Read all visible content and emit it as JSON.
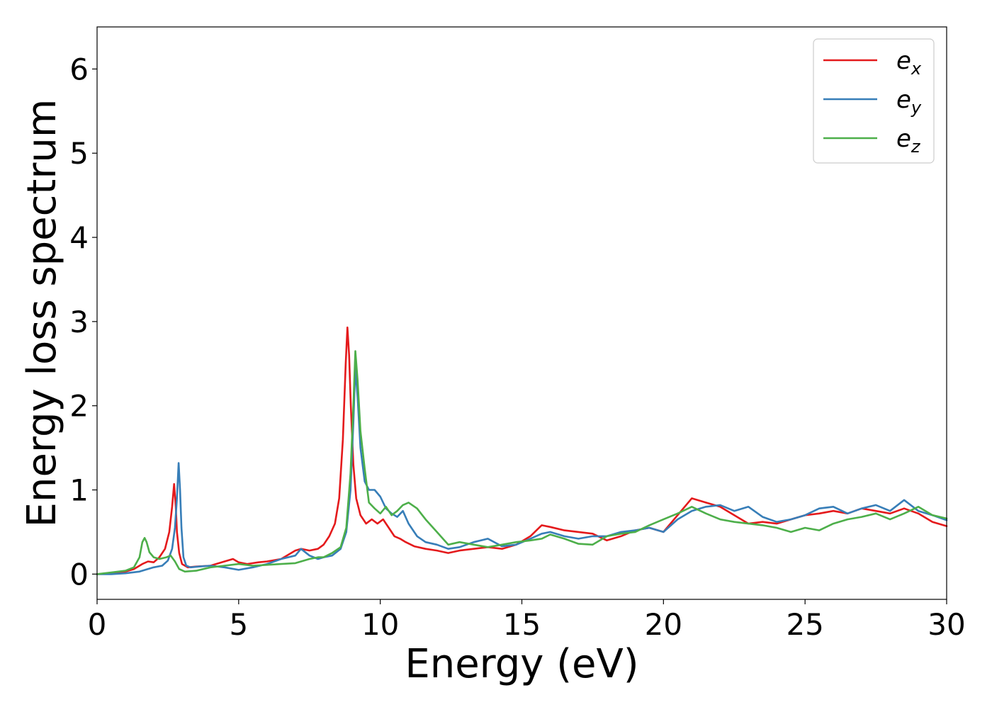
{
  "chart_data": {
    "type": "line",
    "title": "",
    "xlabel": "Energy (eV)",
    "ylabel": "Energy loss spectrum",
    "xlim": [
      0,
      30
    ],
    "ylim": [
      -0.3,
      6.5
    ],
    "xticks": [
      0,
      5,
      10,
      15,
      20,
      25,
      30
    ],
    "yticks": [
      0,
      1,
      2,
      3,
      4,
      5,
      6
    ],
    "grid": false,
    "legend_position": "top-right",
    "series": [
      {
        "name": "e_x",
        "label_base": "e",
        "label_sub": "x",
        "color": "#e41a1c",
        "x": [
          0,
          0.5,
          1.0,
          1.3,
          1.6,
          1.8,
          2.0,
          2.2,
          2.4,
          2.55,
          2.65,
          2.72,
          2.78,
          2.82,
          2.9,
          3.0,
          3.2,
          3.5,
          4.0,
          4.5,
          4.8,
          5.0,
          5.3,
          5.7,
          6.0,
          6.5,
          7.0,
          7.2,
          7.5,
          7.8,
          8.0,
          8.2,
          8.4,
          8.55,
          8.68,
          8.78,
          8.84,
          8.9,
          8.96,
          9.05,
          9.15,
          9.3,
          9.5,
          9.7,
          9.9,
          10.1,
          10.3,
          10.5,
          10.7,
          10.9,
          11.2,
          11.6,
          12.0,
          12.4,
          12.8,
          13.3,
          13.8,
          14.3,
          14.8,
          15.3,
          15.7,
          16.0,
          16.5,
          17.0,
          17.5,
          18.0,
          18.5,
          19.0,
          19.5,
          20.0,
          20.5,
          21.0,
          21.5,
          22.0,
          22.5,
          23.0,
          23.5,
          24.0,
          24.5,
          25.0,
          25.5,
          26.0,
          26.5,
          27.0,
          27.5,
          28.0,
          28.5,
          29.0,
          29.5,
          30.0
        ],
        "y": [
          0.0,
          0.01,
          0.03,
          0.06,
          0.12,
          0.15,
          0.14,
          0.2,
          0.3,
          0.5,
          0.8,
          1.07,
          0.8,
          0.5,
          0.25,
          0.12,
          0.08,
          0.09,
          0.1,
          0.15,
          0.18,
          0.14,
          0.12,
          0.14,
          0.15,
          0.18,
          0.28,
          0.3,
          0.28,
          0.3,
          0.35,
          0.45,
          0.6,
          0.9,
          1.6,
          2.5,
          2.93,
          2.6,
          2.0,
          1.3,
          0.9,
          0.7,
          0.6,
          0.65,
          0.6,
          0.65,
          0.55,
          0.45,
          0.42,
          0.38,
          0.33,
          0.3,
          0.28,
          0.25,
          0.28,
          0.3,
          0.32,
          0.3,
          0.35,
          0.45,
          0.58,
          0.56,
          0.52,
          0.5,
          0.48,
          0.4,
          0.45,
          0.52,
          0.55,
          0.5,
          0.7,
          0.9,
          0.85,
          0.8,
          0.7,
          0.6,
          0.62,
          0.6,
          0.65,
          0.7,
          0.72,
          0.75,
          0.72,
          0.78,
          0.75,
          0.72,
          0.78,
          0.72,
          0.62,
          0.57
        ]
      },
      {
        "name": "e_y",
        "label_base": "e",
        "label_sub": "y",
        "color": "#377eb8",
        "x": [
          0,
          0.5,
          1.0,
          1.5,
          2.0,
          2.3,
          2.5,
          2.65,
          2.75,
          2.82,
          2.88,
          2.93,
          2.98,
          3.05,
          3.15,
          3.3,
          3.6,
          4.0,
          4.5,
          5.0,
          5.5,
          6.0,
          6.5,
          7.0,
          7.2,
          7.5,
          7.8,
          8.0,
          8.3,
          8.6,
          8.8,
          8.95,
          9.05,
          9.12,
          9.2,
          9.3,
          9.45,
          9.6,
          9.8,
          10.0,
          10.2,
          10.4,
          10.6,
          10.8,
          11.0,
          11.3,
          11.6,
          12.0,
          12.4,
          12.8,
          13.3,
          13.8,
          14.3,
          14.8,
          15.3,
          15.7,
          16.0,
          16.5,
          17.0,
          17.5,
          18.0,
          18.5,
          19.0,
          19.5,
          20.0,
          20.5,
          21.0,
          21.5,
          22.0,
          22.5,
          23.0,
          23.5,
          24.0,
          24.5,
          25.0,
          25.5,
          26.0,
          26.5,
          27.0,
          27.5,
          28.0,
          28.5,
          29.0,
          29.5,
          30.0
        ],
        "y": [
          0.0,
          0.0,
          0.01,
          0.03,
          0.08,
          0.1,
          0.16,
          0.3,
          0.55,
          0.9,
          1.32,
          1.0,
          0.55,
          0.2,
          0.1,
          0.08,
          0.09,
          0.1,
          0.08,
          0.05,
          0.08,
          0.12,
          0.18,
          0.22,
          0.3,
          0.22,
          0.18,
          0.2,
          0.22,
          0.3,
          0.5,
          1.0,
          1.8,
          2.45,
          2.1,
          1.5,
          1.1,
          1.0,
          1.0,
          0.92,
          0.78,
          0.72,
          0.68,
          0.75,
          0.6,
          0.45,
          0.38,
          0.35,
          0.3,
          0.32,
          0.38,
          0.42,
          0.33,
          0.35,
          0.42,
          0.48,
          0.5,
          0.45,
          0.42,
          0.45,
          0.45,
          0.5,
          0.52,
          0.55,
          0.5,
          0.65,
          0.75,
          0.8,
          0.82,
          0.75,
          0.8,
          0.68,
          0.62,
          0.65,
          0.7,
          0.78,
          0.8,
          0.72,
          0.78,
          0.82,
          0.75,
          0.88,
          0.75,
          0.7,
          0.64
        ]
      },
      {
        "name": "e_z",
        "label_base": "e",
        "label_sub": "z",
        "color": "#4daf4a",
        "x": [
          0,
          0.5,
          1.0,
          1.3,
          1.5,
          1.6,
          1.68,
          1.75,
          1.85,
          2.0,
          2.2,
          2.45,
          2.6,
          2.75,
          2.9,
          3.1,
          3.5,
          4.0,
          4.5,
          5.0,
          5.5,
          6.0,
          6.5,
          7.0,
          7.5,
          7.8,
          8.0,
          8.3,
          8.6,
          8.8,
          8.95,
          9.05,
          9.12,
          9.2,
          9.3,
          9.45,
          9.6,
          9.8,
          10.0,
          10.2,
          10.4,
          10.6,
          10.8,
          11.0,
          11.3,
          11.6,
          12.0,
          12.4,
          12.8,
          13.3,
          13.8,
          14.3,
          14.8,
          15.3,
          15.7,
          16.0,
          16.5,
          17.0,
          17.5,
          18.0,
          18.5,
          19.0,
          19.5,
          20.0,
          20.5,
          21.0,
          21.5,
          22.0,
          22.5,
          23.0,
          23.5,
          24.0,
          24.5,
          25.0,
          25.5,
          26.0,
          26.5,
          27.0,
          27.5,
          28.0,
          28.5,
          29.0,
          29.5,
          30.0
        ],
        "y": [
          0.0,
          0.02,
          0.04,
          0.08,
          0.2,
          0.38,
          0.43,
          0.38,
          0.26,
          0.2,
          0.18,
          0.2,
          0.22,
          0.15,
          0.06,
          0.03,
          0.04,
          0.08,
          0.1,
          0.12,
          0.1,
          0.11,
          0.12,
          0.13,
          0.18,
          0.2,
          0.2,
          0.25,
          0.32,
          0.55,
          1.2,
          2.0,
          2.65,
          2.3,
          1.7,
          1.25,
          0.85,
          0.78,
          0.72,
          0.8,
          0.7,
          0.75,
          0.82,
          0.85,
          0.78,
          0.65,
          0.5,
          0.35,
          0.38,
          0.35,
          0.32,
          0.35,
          0.38,
          0.4,
          0.42,
          0.47,
          0.42,
          0.36,
          0.35,
          0.45,
          0.48,
          0.5,
          0.58,
          0.65,
          0.72,
          0.8,
          0.72,
          0.65,
          0.62,
          0.6,
          0.58,
          0.55,
          0.5,
          0.55,
          0.52,
          0.6,
          0.65,
          0.68,
          0.72,
          0.65,
          0.72,
          0.8,
          0.7,
          0.66
        ]
      }
    ]
  }
}
